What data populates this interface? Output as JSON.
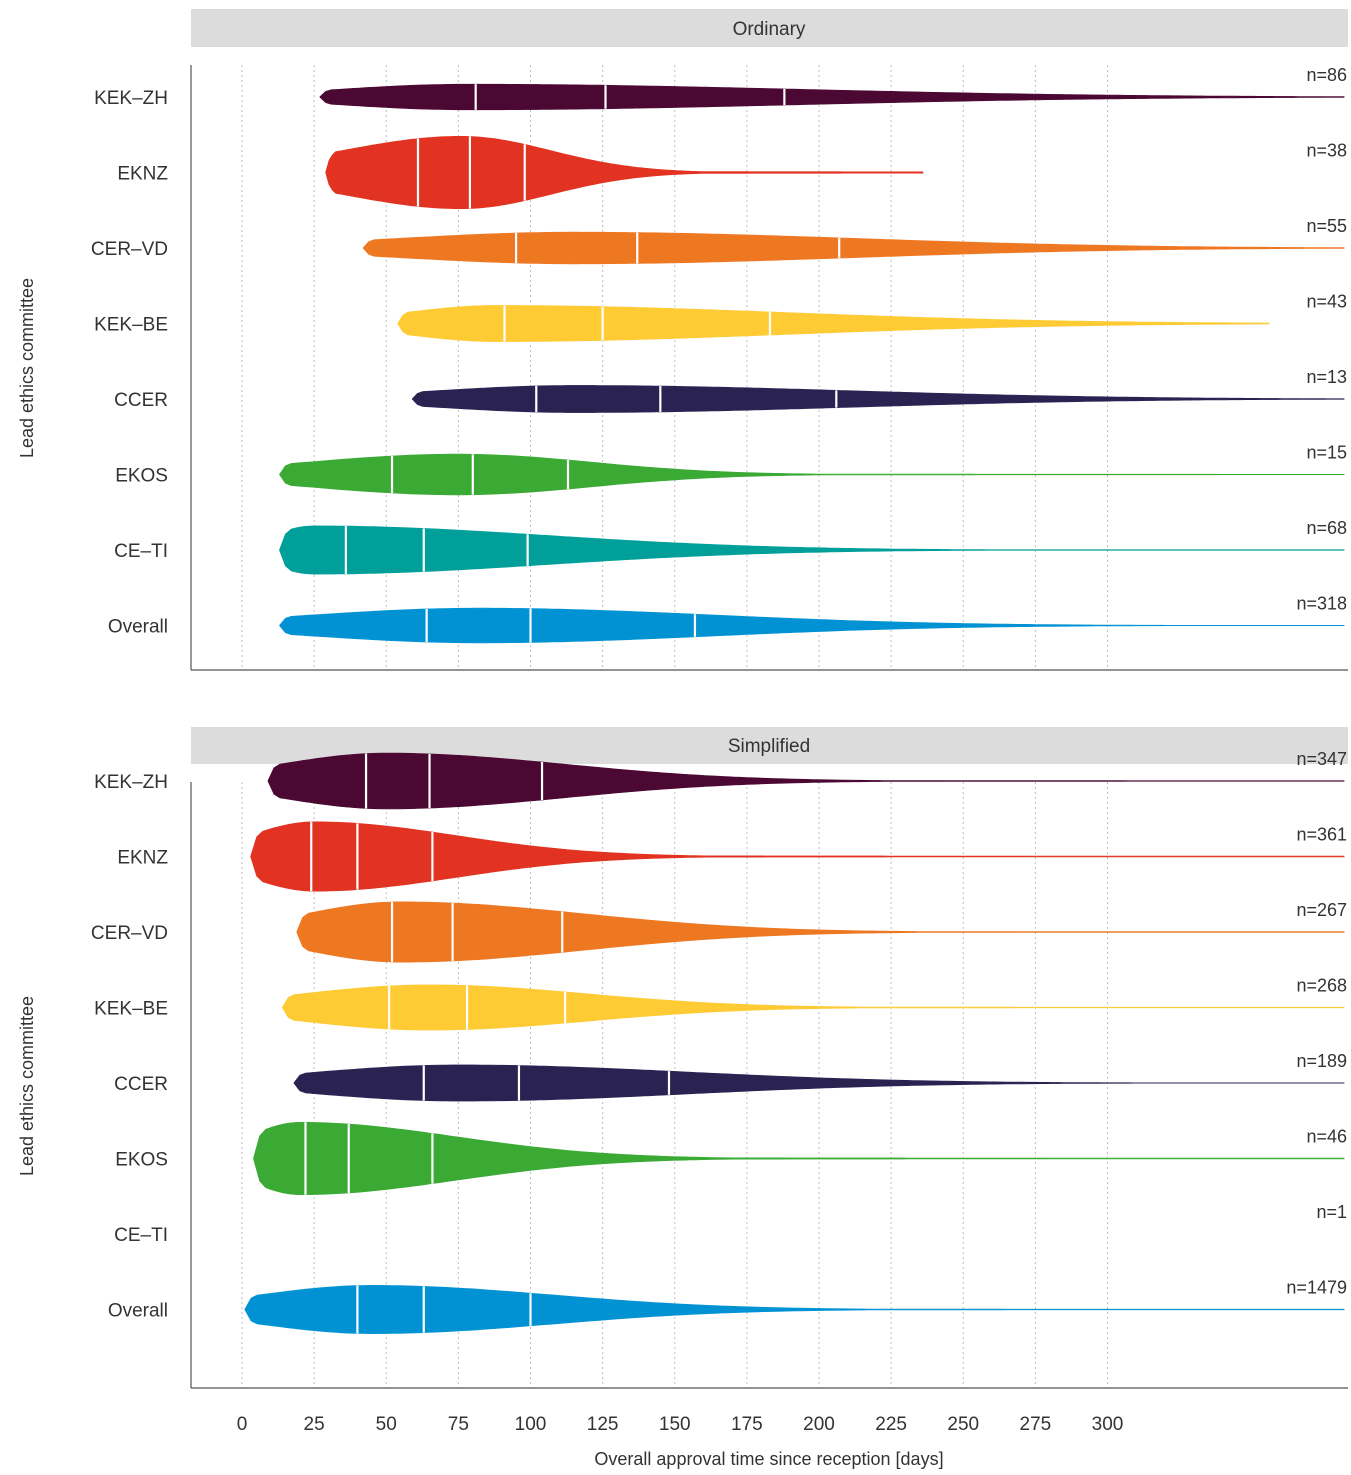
{
  "chart_data": {
    "type": "violin",
    "xlabel": "Overall approval time since reception [days]",
    "ylabel": "Lead ethics committee",
    "x_ticks": [
      0,
      25,
      50,
      75,
      100,
      125,
      150,
      175,
      200,
      225,
      250,
      275,
      300
    ],
    "xlim": [
      -8,
      382
    ],
    "grid": "vertical dotted",
    "colors": {
      "KEK–ZH": "#4a0833",
      "EKNZ": "#e23221",
      "CER–VD": "#ee7722",
      "KEK–BE": "#fecb35",
      "CCER": "#2a2352",
      "EKOS": "#3aaa35",
      "CE–TI": "#009f99",
      "Overall": "#0092d3"
    },
    "panels": [
      {
        "strip": "Ordinary",
        "violins": [
          {
            "name": "KEK–ZH",
            "n": "n=86",
            "min": 27,
            "max": 382,
            "q1": 81,
            "median": 126,
            "q3": 188,
            "peak": 78,
            "halfwidth": 0.17
          },
          {
            "name": "EKNZ",
            "n": "n=38",
            "min": 29,
            "max": 236,
            "q1": 61,
            "median": 79,
            "q3": 98,
            "peak": 76,
            "halfwidth": 0.48
          },
          {
            "name": "CER–VD",
            "n": "n=55",
            "min": 42,
            "max": 382,
            "q1": 95,
            "median": 137,
            "q3": 207,
            "peak": 115,
            "halfwidth": 0.21
          },
          {
            "name": "KEK–BE",
            "n": "n=43",
            "min": 54,
            "max": 356,
            "q1": 91,
            "median": 125,
            "q3": 183,
            "peak": 88,
            "halfwidth": 0.24
          },
          {
            "name": "CCER",
            "n": "n=13",
            "min": 59,
            "max": 382,
            "q1": 102,
            "median": 145,
            "q3": 206,
            "peak": 115,
            "halfwidth": 0.18
          },
          {
            "name": "EKOS",
            "n": "n=15",
            "min": 13,
            "max": 382,
            "q1": 52,
            "median": 80,
            "q3": 113,
            "peak": 75,
            "halfwidth": 0.27
          },
          {
            "name": "CE–TI",
            "n": "n=68",
            "min": 13,
            "max": 382,
            "q1": 36,
            "median": 63,
            "q3": 99,
            "peak": 25,
            "halfwidth": 0.32
          },
          {
            "name": "Overall",
            "n": "n=318",
            "min": 13,
            "max": 382,
            "q1": 64,
            "median": 100,
            "q3": 157,
            "peak": 82,
            "halfwidth": 0.23
          }
        ]
      },
      {
        "strip": "Simplified",
        "violins": [
          {
            "name": "KEK–ZH",
            "n": "n=347",
            "min": 9,
            "max": 382,
            "q1": 43,
            "median": 65,
            "q3": 104,
            "peak": 50,
            "halfwidth": 0.37
          },
          {
            "name": "EKNZ",
            "n": "n=361",
            "min": 3,
            "max": 382,
            "q1": 24,
            "median": 40,
            "q3": 66,
            "peak": 25,
            "halfwidth": 0.46
          },
          {
            "name": "CER–VD",
            "n": "n=267",
            "min": 19,
            "max": 382,
            "q1": 52,
            "median": 73,
            "q3": 111,
            "peak": 55,
            "halfwidth": 0.4
          },
          {
            "name": "KEK–BE",
            "n": "n=268",
            "min": 14,
            "max": 382,
            "q1": 51,
            "median": 78,
            "q3": 112,
            "peak": 65,
            "halfwidth": 0.3
          },
          {
            "name": "CCER",
            "n": "n=189",
            "min": 18,
            "max": 382,
            "q1": 63,
            "median": 96,
            "q3": 148,
            "peak": 75,
            "halfwidth": 0.24
          },
          {
            "name": "EKOS",
            "n": "n=46",
            "min": 4,
            "max": 382,
            "q1": 22,
            "median": 37,
            "q3": 66,
            "peak": 20,
            "halfwidth": 0.48
          },
          {
            "name": "CE–TI",
            "n": "n=1",
            "min": null,
            "max": null,
            "q1": null,
            "median": null,
            "q3": null,
            "peak": null,
            "halfwidth": 0
          },
          {
            "name": "Overall",
            "n": "n=1479",
            "min": 1,
            "max": 382,
            "q1": 40,
            "median": 63,
            "q3": 100,
            "peak": 45,
            "halfwidth": 0.32
          }
        ]
      }
    ]
  }
}
